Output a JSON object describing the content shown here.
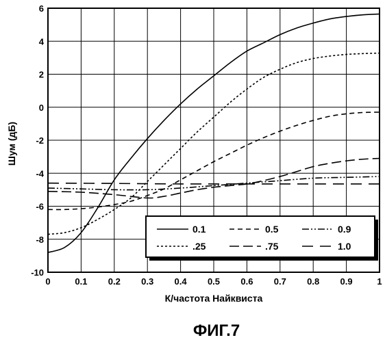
{
  "chart_data": {
    "type": "line",
    "xlabel": "К/частота Найквиста",
    "ylabel": "Шум (дБ)",
    "caption": "ФИГ.7",
    "xlim": [
      0,
      1
    ],
    "ylim": [
      -10,
      6
    ],
    "xticks": [
      "0",
      "0.1",
      "0.2",
      "0.3",
      "0.4",
      "0.5",
      "0.6",
      "0.7",
      "0.8",
      "0.9",
      "1"
    ],
    "yticks": [
      "-10",
      "-8",
      "-6",
      "-4",
      "-2",
      "0",
      "2",
      "4",
      "6"
    ],
    "grid": true,
    "legend_position": "bottom-right",
    "series": [
      {
        "name": "0.1",
        "dash": "solid",
        "x": [
          0,
          0.05,
          0.1,
          0.15,
          0.2,
          0.25,
          0.3,
          0.35,
          0.4,
          0.45,
          0.5,
          0.55,
          0.6,
          0.65,
          0.7,
          0.75,
          0.8,
          0.85,
          0.9,
          0.95,
          1.0
        ],
        "y": [
          -8.8,
          -8.5,
          -7.6,
          -6.1,
          -4.4,
          -3.1,
          -1.9,
          -0.8,
          0.2,
          1.1,
          1.9,
          2.7,
          3.4,
          3.9,
          4.4,
          4.8,
          5.1,
          5.35,
          5.5,
          5.6,
          5.65
        ]
      },
      {
        "name": ".25",
        "dash": "dotted",
        "x": [
          0,
          0.05,
          0.1,
          0.15,
          0.2,
          0.25,
          0.3,
          0.35,
          0.4,
          0.45,
          0.5,
          0.55,
          0.6,
          0.65,
          0.7,
          0.75,
          0.8,
          0.85,
          0.9,
          0.95,
          1.0
        ],
        "y": [
          -7.7,
          -7.6,
          -7.3,
          -6.8,
          -6.2,
          -5.5,
          -4.5,
          -3.5,
          -2.5,
          -1.5,
          -0.6,
          0.3,
          1.1,
          1.8,
          2.3,
          2.7,
          2.95,
          3.1,
          3.2,
          3.25,
          3.28
        ]
      },
      {
        "name": "0.5",
        "dash": "short-dash",
        "x": [
          0,
          0.05,
          0.1,
          0.15,
          0.2,
          0.25,
          0.3,
          0.35,
          0.4,
          0.45,
          0.5,
          0.55,
          0.6,
          0.65,
          0.7,
          0.75,
          0.8,
          0.85,
          0.9,
          0.95,
          1.0
        ],
        "y": [
          -6.2,
          -6.2,
          -6.15,
          -6.05,
          -5.9,
          -5.7,
          -5.35,
          -4.95,
          -4.4,
          -3.85,
          -3.3,
          -2.8,
          -2.3,
          -1.85,
          -1.45,
          -1.1,
          -0.8,
          -0.55,
          -0.4,
          -0.32,
          -0.3
        ]
      },
      {
        "name": ".75",
        "dash": "long-dash",
        "x": [
          0,
          0.1,
          0.2,
          0.3,
          0.35,
          0.4,
          0.45,
          0.5,
          0.55,
          0.6,
          0.65,
          0.7,
          0.75,
          0.8,
          0.85,
          0.9,
          0.95,
          1.0
        ],
        "y": [
          -5.1,
          -5.15,
          -5.3,
          -5.5,
          -5.4,
          -5.2,
          -5.0,
          -4.85,
          -4.75,
          -4.65,
          -4.45,
          -4.2,
          -3.9,
          -3.6,
          -3.4,
          -3.25,
          -3.15,
          -3.1
        ]
      },
      {
        "name": "0.9",
        "dash": "dash-dot",
        "x": [
          0,
          0.1,
          0.2,
          0.3,
          0.4,
          0.5,
          0.6,
          0.7,
          0.8,
          0.9,
          1.0
        ],
        "y": [
          -4.9,
          -4.95,
          -5.0,
          -5.0,
          -4.9,
          -4.75,
          -4.6,
          -4.45,
          -4.3,
          -4.25,
          -4.2
        ]
      },
      {
        "name": "1.0",
        "dash": "dash-gap",
        "x": [
          0,
          0.2,
          0.4,
          0.6,
          0.8,
          1.0
        ],
        "y": [
          -4.6,
          -4.62,
          -4.65,
          -4.65,
          -4.65,
          -4.65
        ]
      }
    ],
    "legend_order": [
      "0.1",
      "0.5",
      "0.9",
      ".25",
      ".75",
      "1.0"
    ]
  }
}
